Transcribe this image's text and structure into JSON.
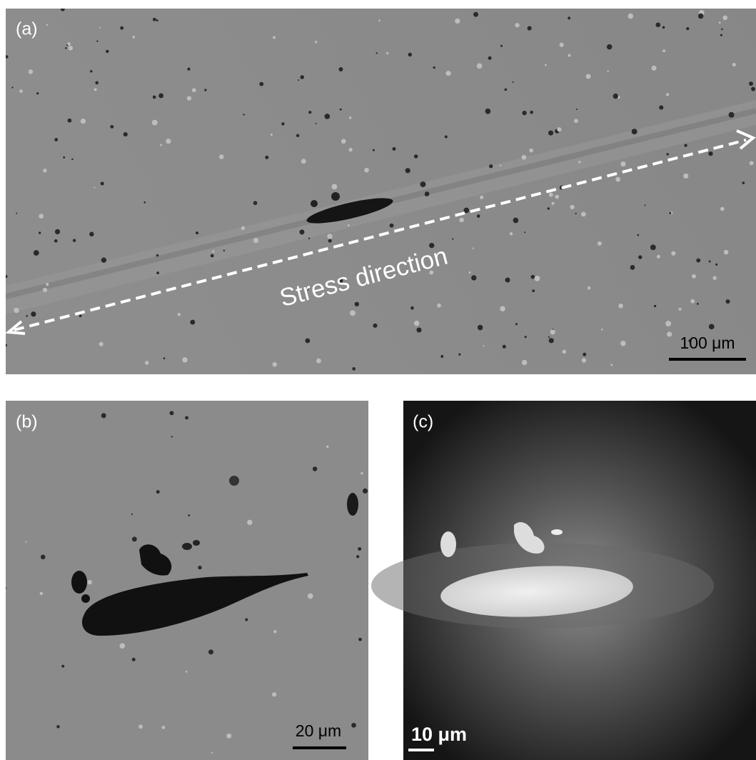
{
  "panels": [
    {
      "label": "(a)",
      "annotation": "Stress direction",
      "scale_bar": "100 μm"
    },
    {
      "label": "(b)",
      "scale_bar": "20 μm"
    },
    {
      "label": "(c)",
      "scale_bar": "10 μm"
    }
  ]
}
